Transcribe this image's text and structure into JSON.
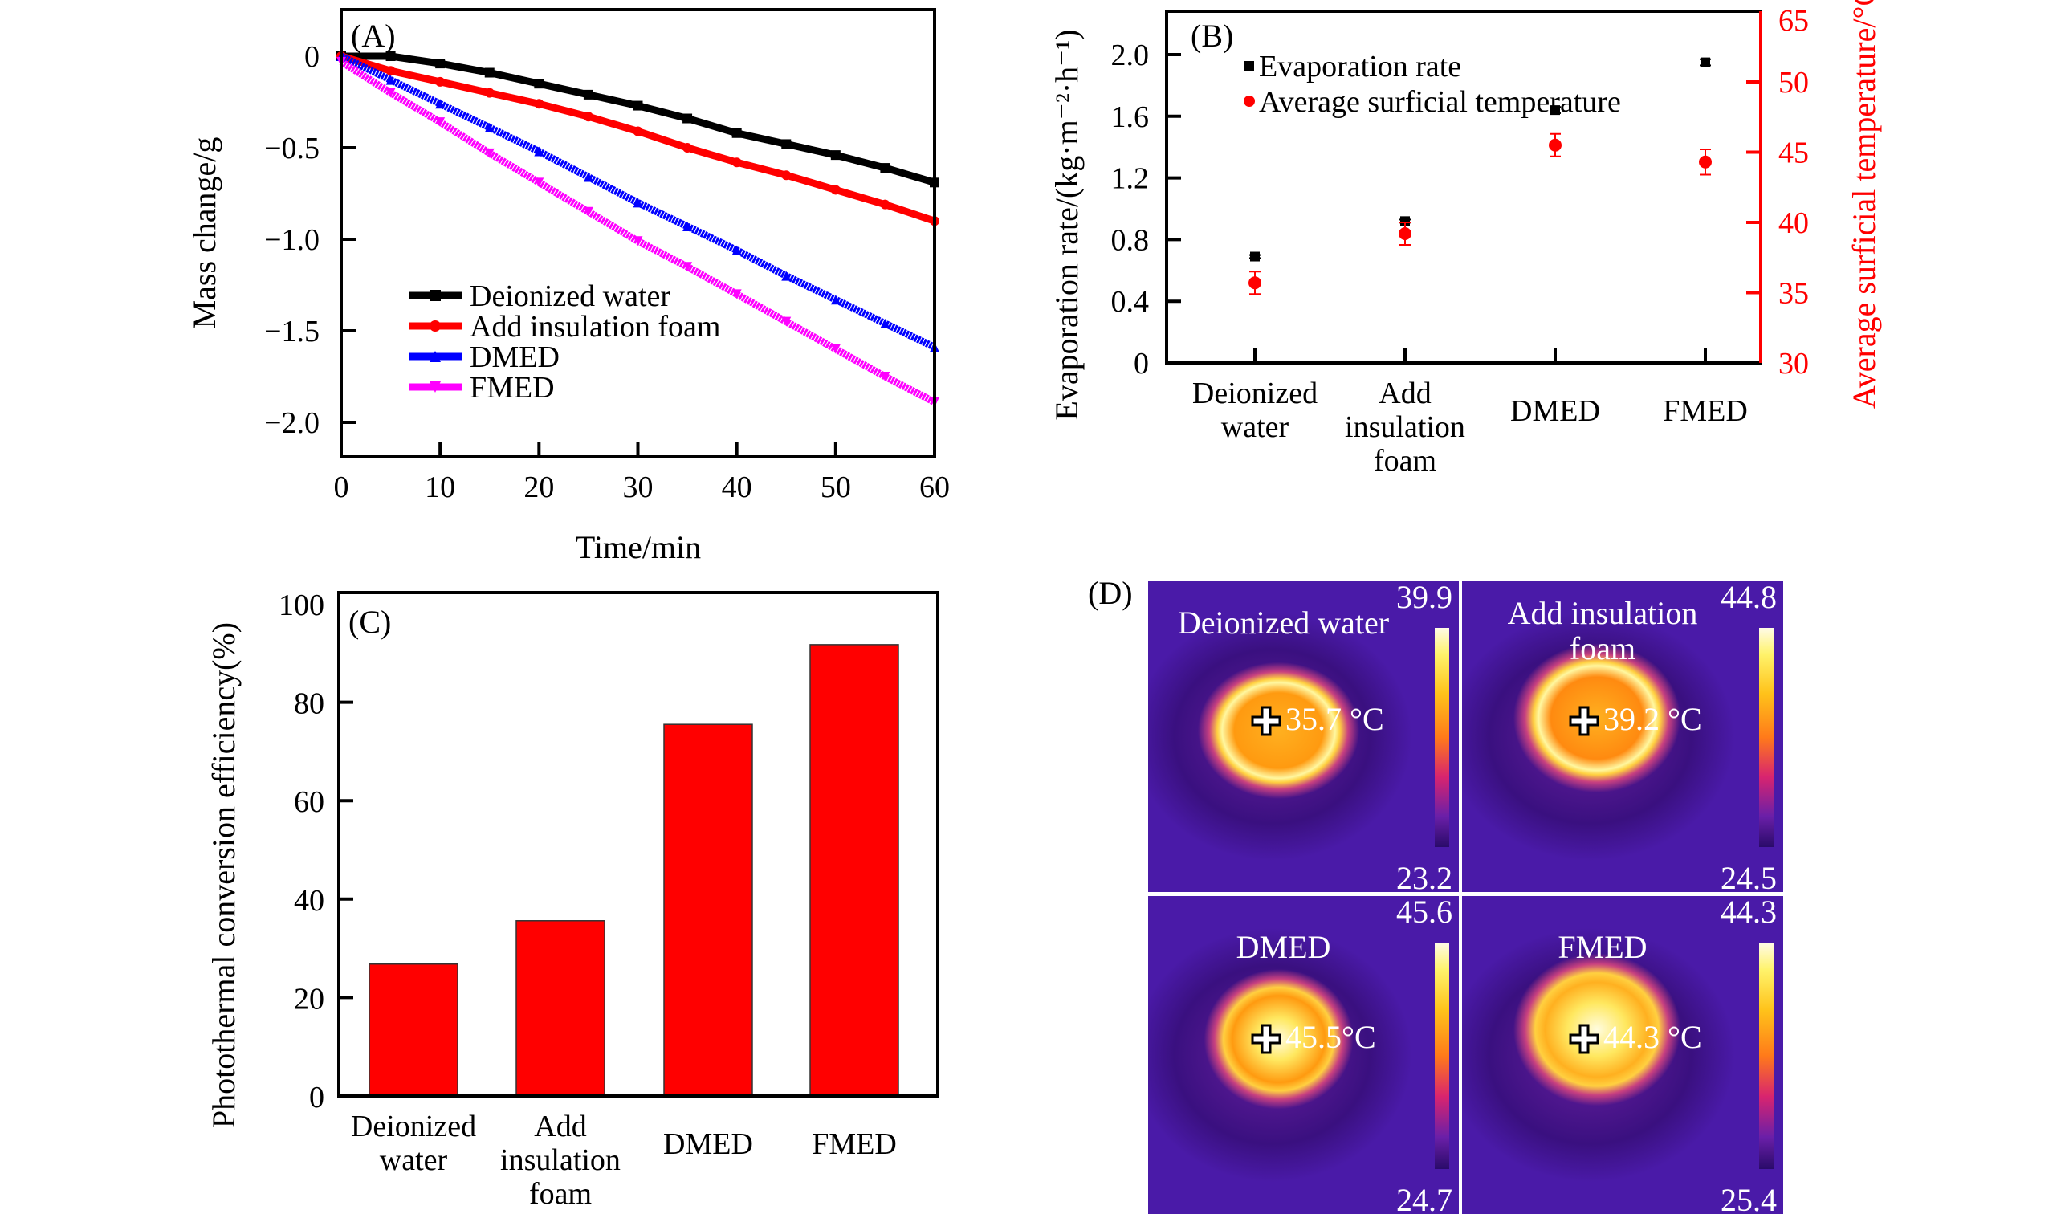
{
  "panels": {
    "A": {
      "tag": "(A)"
    },
    "B": {
      "tag": "(B)"
    },
    "C": {
      "tag": "(C)"
    },
    "D": {
      "tag": "(D)"
    }
  },
  "chart_data": [
    {
      "id": "A",
      "type": "line",
      "title": "",
      "xlabel": "Time/min",
      "ylabel": "Mass change/g",
      "xlim": [
        0,
        60
      ],
      "ylim": [
        -2.25,
        0.25
      ],
      "xticks": [
        0,
        10,
        20,
        30,
        40,
        50,
        60
      ],
      "yticks": [
        0,
        -0.5,
        -1.0,
        -1.5,
        -2.0
      ],
      "ytick_labels": [
        "0",
        "−0.5",
        "−1.0",
        "−1.5",
        "−2.0"
      ],
      "grid": false,
      "legend": "lower-left",
      "x": [
        0,
        5,
        10,
        15,
        20,
        25,
        30,
        35,
        40,
        45,
        50,
        55,
        60
      ],
      "series": [
        {
          "name": "Deionized water",
          "color": "#000000",
          "marker": "square",
          "values": [
            0,
            0.0,
            -0.04,
            -0.09,
            -0.15,
            -0.21,
            -0.27,
            -0.34,
            -0.42,
            -0.48,
            -0.54,
            -0.61,
            -0.69
          ]
        },
        {
          "name": "Add insulation foam",
          "color": "#ff0000",
          "marker": "circle",
          "values": [
            0,
            -0.08,
            -0.14,
            -0.2,
            -0.26,
            -0.33,
            -0.41,
            -0.5,
            -0.58,
            -0.65,
            -0.73,
            -0.81,
            -0.9
          ]
        },
        {
          "name": "DMED",
          "color": "#0000ff",
          "marker": "triangle-up",
          "values": [
            0,
            -0.13,
            -0.26,
            -0.39,
            -0.52,
            -0.66,
            -0.8,
            -0.93,
            -1.06,
            -1.2,
            -1.33,
            -1.46,
            -1.59
          ]
        },
        {
          "name": "FMED",
          "color": "#ff00ff",
          "marker": "triangle-down",
          "values": [
            -0.03,
            -0.2,
            -0.36,
            -0.53,
            -0.69,
            -0.85,
            -1.01,
            -1.15,
            -1.3,
            -1.45,
            -1.6,
            -1.75,
            -1.89
          ]
        }
      ]
    },
    {
      "id": "B",
      "type": "scatter",
      "title": "",
      "xlabel": "",
      "ylabel": "Evaporation rate/(kg·m⁻²·h⁻¹)",
      "ylabel_right": "Average surficial temperature/°C",
      "categories": [
        "Deionized water",
        "Add insulation foam",
        "DMED",
        "FMED"
      ],
      "category_lines": [
        [
          "Deionized",
          "water"
        ],
        [
          "Add",
          "insulation",
          "foam"
        ],
        [
          "DMED"
        ],
        [
          "FMED"
        ]
      ],
      "ylim": [
        0,
        2.2
      ],
      "yticks": [
        0,
        0.4,
        0.8,
        1.2,
        1.6,
        2.0
      ],
      "ytick_labels": [
        "0",
        "0.4",
        "0.8",
        "1.2",
        "1.6",
        "2.0"
      ],
      "ylim_right": [
        30,
        50
      ],
      "yticks_right": [
        30,
        35,
        40,
        45,
        50
      ],
      "ytop_right_label": "65",
      "right_axis_color": "#ff0000",
      "grid": false,
      "legend": "top-left",
      "series": [
        {
          "name": "Evaporation rate",
          "axis": "left",
          "color": "#000000",
          "marker": "square",
          "values": [
            0.69,
            0.92,
            1.64,
            1.95
          ],
          "errors": [
            0.01,
            0.01,
            0.02,
            0.02
          ]
        },
        {
          "name": "Average surficial temperature",
          "axis": "right",
          "color": "#ff0000",
          "marker": "circle",
          "values": [
            35.7,
            39.2,
            45.5,
            44.3
          ],
          "errors": [
            0.8,
            0.8,
            0.8,
            0.9
          ]
        }
      ]
    },
    {
      "id": "C",
      "type": "bar",
      "title": "",
      "xlabel": "",
      "ylabel": "Photothermal conversion efficiency(%)",
      "categories": [
        "Deionized water",
        "Add insulation foam",
        "DMED",
        "FMED"
      ],
      "category_lines": [
        [
          "Deionized",
          "water"
        ],
        [
          "Add",
          "insulation",
          "foam"
        ],
        [
          "DMED"
        ],
        [
          "FMED"
        ]
      ],
      "values": [
        26.8,
        35.6,
        75.5,
        91.7
      ],
      "bar_color": "#ff0000",
      "ylim": [
        0,
        100
      ],
      "yticks": [
        0,
        20,
        40,
        60,
        80,
        100
      ],
      "grid": false
    }
  ],
  "thermal_images": [
    {
      "title_lines": [
        "Deionized water"
      ],
      "scale_max": "39.9",
      "scale_min": "23.2",
      "reading": "35.7 °C"
    },
    {
      "title_lines": [
        "Add insulation",
        "foam"
      ],
      "scale_max": "44.8",
      "scale_min": "24.5",
      "reading": "39.2 °C"
    },
    {
      "title_lines": [
        "DMED"
      ],
      "scale_max": "45.6",
      "scale_min": "24.7",
      "reading": "45.5°C"
    },
    {
      "title_lines": [
        "FMED"
      ],
      "scale_max": "44.3",
      "scale_min": "25.4",
      "reading": "44.3 °C"
    }
  ]
}
